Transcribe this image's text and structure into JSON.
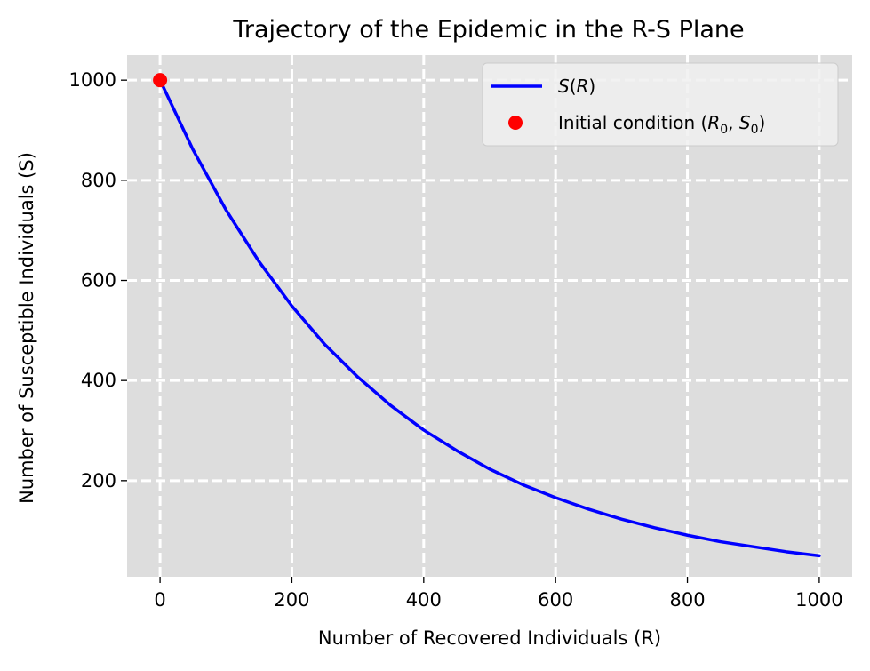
{
  "chart_data": {
    "type": "line",
    "title": "Trajectory of the Epidemic in the R-S Plane",
    "xlabel": "Number of Recovered Individuals (R)",
    "ylabel": "Number of Susceptible Individuals (S)",
    "xlim": [
      -50,
      1050
    ],
    "ylim": [
      8,
      1050
    ],
    "x_ticks": [
      0,
      200,
      400,
      600,
      800,
      1000
    ],
    "y_ticks": [
      200,
      400,
      600,
      800,
      1000
    ],
    "x_tick_labels": [
      "0",
      "200",
      "400",
      "600",
      "800",
      "1000"
    ],
    "y_tick_labels": [
      "200",
      "400",
      "600",
      "800",
      "1000"
    ],
    "grid": true,
    "grid_style": "dashed",
    "background_color": "#dddddd",
    "grid_color": "#ffffff",
    "legend_position": "top-right",
    "series": [
      {
        "name": "S(R)",
        "kind": "line",
        "color": "#0000ff",
        "x": [
          0,
          50,
          100,
          150,
          200,
          250,
          300,
          350,
          400,
          450,
          500,
          550,
          600,
          650,
          700,
          750,
          800,
          850,
          900,
          950,
          1000
        ],
        "y": [
          1000,
          861,
          741,
          638,
          549,
          472,
          407,
          350,
          301,
          260,
          223,
          192,
          166,
          143,
          123,
          106,
          91,
          78,
          68,
          58,
          50
        ]
      },
      {
        "name": "Initial condition (R0, S0)",
        "kind": "point",
        "color": "#ff0000",
        "x": [
          0
        ],
        "y": [
          1000
        ]
      }
    ],
    "legend": [
      {
        "label": "S(R)",
        "marker": "line",
        "color": "#0000ff"
      },
      {
        "label": "Initial condition (R0, S0)",
        "marker": "circle",
        "color": "#ff0000"
      }
    ]
  }
}
